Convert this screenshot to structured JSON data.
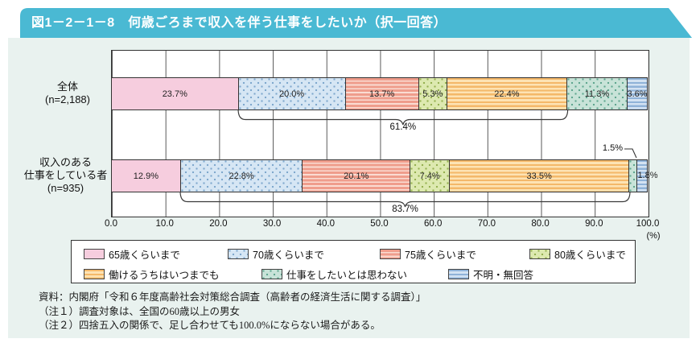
{
  "figure_title": "図1－2－1－8　何歳ごろまで収入を伴う仕事をしたいか（択一回答）",
  "colors": {
    "banner": "#4ab9d3",
    "panel_bg": "#e9f2ef",
    "plot_bg": "#ffffff",
    "grid": "#595959",
    "border": "#333333"
  },
  "chart_data": {
    "type": "bar",
    "stacked": true,
    "orientation": "horizontal",
    "xlim": [
      0,
      100
    ],
    "x_ticks": [
      "0.0",
      "10.0",
      "20.0",
      "30.0",
      "40.0",
      "50.0",
      "60.0",
      "70.0",
      "80.0",
      "90.0",
      "100.0"
    ],
    "x_unit_label": "(%)",
    "grid": true,
    "legend_position": "bottom",
    "categories": [
      "65歳くらいまで",
      "70歳くらいまで",
      "75歳くらいまで",
      "80歳くらいまで",
      "働けるうちはいつまでも",
      "仕事をしたいとは思わない",
      "不明・無回答"
    ],
    "series": [
      {
        "name": "全体",
        "name_lines": [
          "全体",
          "(n=2,188)"
        ],
        "values": [
          23.7,
          20.0,
          13.7,
          5.3,
          22.4,
          11.3,
          3.6
        ],
        "value_labels": [
          "23.7%",
          "20.0%",
          "13.7%",
          "5.3%",
          "22.4%",
          "11.3%",
          "3.6%"
        ],
        "label_placement": [
          "in",
          "in",
          "in",
          "in",
          "in",
          "in",
          "in"
        ],
        "bracket": {
          "label": "61.4%",
          "from_index": 1,
          "to_index": 4
        }
      },
      {
        "name": "収入のある仕事をしている者",
        "name_lines": [
          "収入のある",
          "仕事をしている者",
          "(n=935)"
        ],
        "values": [
          12.9,
          22.8,
          20.1,
          7.4,
          33.5,
          1.5,
          1.8
        ],
        "value_labels": [
          "12.9%",
          "22.8%",
          "20.1%",
          "7.4%",
          "33.5%",
          "1.5%",
          "1.8%"
        ],
        "label_placement": [
          "in",
          "in",
          "in",
          "in",
          "in",
          "callout-above",
          "overlay-right"
        ],
        "bracket": {
          "label": "83.7%",
          "from_index": 1,
          "to_index": 4
        }
      }
    ]
  },
  "legend": {
    "items": [
      {
        "label": "65歳くらいまで",
        "pattern": "solid",
        "fill": "#f6cdde",
        "accent": "#f6cdde"
      },
      {
        "label": "70歳くらいまで",
        "pattern": "dots",
        "fill": "#d6e6f4",
        "accent": "#7fa8cd"
      },
      {
        "label": "75歳くらいまで",
        "pattern": "hstripes-heavy",
        "fill": "#fadcd2",
        "accent": "#ef9d8c"
      },
      {
        "label": "80歳くらいまで",
        "pattern": "dots",
        "fill": "#dde9b0",
        "accent": "#95b050"
      },
      {
        "label": "働けるうちはいつまでも",
        "pattern": "hstripes",
        "fill": "#fde3b4",
        "accent": "#f4b869"
      },
      {
        "label": "仕事をしたいとは思わない",
        "pattern": "dots",
        "fill": "#c8e3d8",
        "accent": "#5fa68f"
      },
      {
        "label": "不明・無回答",
        "pattern": "hstripes",
        "fill": "#d3e2f2",
        "accent": "#8fb2d8"
      }
    ]
  },
  "source": "資料：内閣府「令和６年度高齢社会対策総合調査（高齢者の経済生活に関する調査）」",
  "notes": [
    "（注１）調査対象は、全国の60歳以上の男女",
    "（注２）四捨五入の関係で、足し合わせても100.0%にならない場合がある。"
  ]
}
